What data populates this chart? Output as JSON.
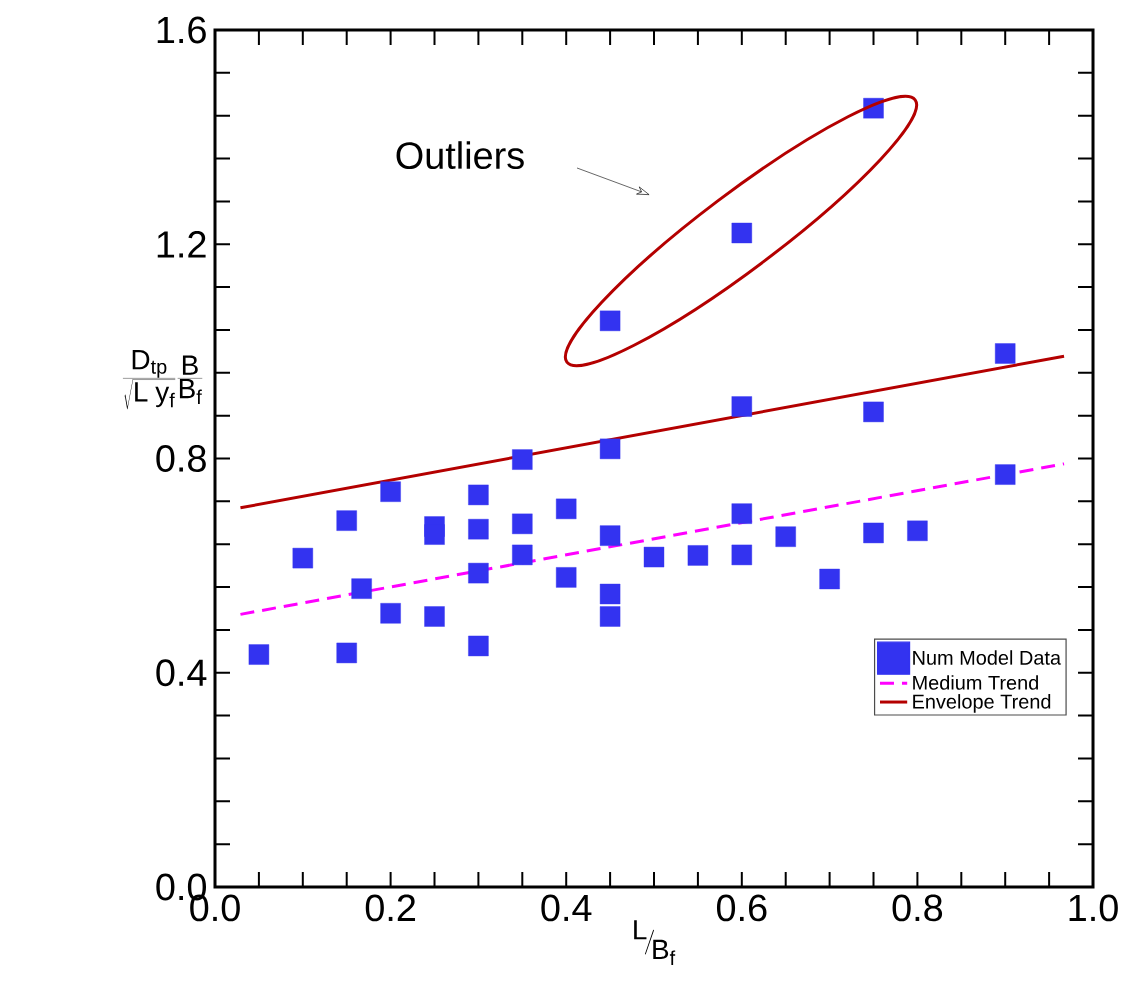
{
  "chart_data": {
    "type": "scatter",
    "xlabel": "{}^{\\mathrm{L}}\\!\\big/_{\\!\\mathrm{B_f}}",
    "ylabel": "\\frac{\\mathrm{D_{tp}}}{\\sqrt{\\mathrm{L\\;y_f}}}\\frac{\\mathrm{B}}{\\mathrm{B_f}}",
    "xlim": [
      0,
      1
    ],
    "ylim": [
      0,
      1.6
    ],
    "xticks": [
      {
        "value": 0,
        "label": "0.0"
      },
      {
        "value": 0.05,
        "label": null
      },
      {
        "value": 0.1,
        "label": null
      },
      {
        "value": 0.15,
        "label": null
      },
      {
        "value": 0.2,
        "label": "0.2"
      },
      {
        "value": 0.25,
        "label": null
      },
      {
        "value": 0.3,
        "label": null
      },
      {
        "value": 0.35,
        "label": null
      },
      {
        "value": 0.4,
        "label": "0.4"
      },
      {
        "value": 0.45,
        "label": null
      },
      {
        "value": 0.5,
        "label": null
      },
      {
        "value": 0.55,
        "label": null
      },
      {
        "value": 0.6,
        "label": "0.6"
      },
      {
        "value": 0.65,
        "label": null
      },
      {
        "value": 0.7,
        "label": null
      },
      {
        "value": 0.75,
        "label": null
      },
      {
        "value": 0.8,
        "label": "0.8"
      },
      {
        "value": 0.85,
        "label": null
      },
      {
        "value": 0.9,
        "label": null
      },
      {
        "value": 0.95,
        "label": null
      },
      {
        "value": 1,
        "label": "1.0"
      }
    ],
    "yticks": [
      {
        "value": 0,
        "label": "0.0"
      },
      {
        "value": 0.08,
        "label": null
      },
      {
        "value": 0.16,
        "label": null
      },
      {
        "value": 0.24,
        "label": null
      },
      {
        "value": 0.32,
        "label": null
      },
      {
        "value": 0.4,
        "label": "0.4"
      },
      {
        "value": 0.48,
        "label": null
      },
      {
        "value": 0.56,
        "label": null
      },
      {
        "value": 0.64,
        "label": null
      },
      {
        "value": 0.72,
        "label": null
      },
      {
        "value": 0.8,
        "label": "0.8"
      },
      {
        "value": 0.88,
        "label": null
      },
      {
        "value": 0.96,
        "label": null
      },
      {
        "value": 1.04,
        "label": null
      },
      {
        "value": 1.12,
        "label": null
      },
      {
        "value": 1.2,
        "label": "1.2"
      },
      {
        "value": 1.28,
        "label": null
      },
      {
        "value": 1.36,
        "label": null
      },
      {
        "value": 1.44,
        "label": null
      },
      {
        "value": 1.52,
        "label": null
      },
      {
        "value": 1.6,
        "label": "1.6"
      }
    ],
    "grid": false,
    "legend": "bottom right",
    "annotations": [
      "Outliers"
    ],
    "series": [
      {
        "name": "Num Model Data",
        "marker": "square",
        "color": "#3333f0",
        "x": [
          0.05,
          0.1,
          0.15,
          0.15,
          0.167,
          0.2,
          0.2,
          0.25,
          0.25,
          0.25,
          0.3,
          0.3,
          0.3,
          0.3,
          0.35,
          0.35,
          0.35,
          0.4,
          0.4,
          0.45,
          0.45,
          0.45,
          0.45,
          0.5,
          0.55,
          0.6,
          0.6,
          0.6,
          0.65,
          0.7,
          0.75,
          0.75,
          0.8,
          0.9,
          0.9,
          0.45,
          0.6,
          0.75
        ],
        "values": [
          0.434,
          0.614,
          0.684,
          0.437,
          0.557,
          0.738,
          0.511,
          0.673,
          0.658,
          0.505,
          0.732,
          0.668,
          0.586,
          0.45,
          0.798,
          0.678,
          0.62,
          0.706,
          0.578,
          0.818,
          0.656,
          0.547,
          0.505,
          0.616,
          0.619,
          0.897,
          0.697,
          0.62,
          0.654,
          0.575,
          0.887,
          0.661,
          0.665,
          0.996,
          0.77,
          1.057,
          1.221,
          1.454
        ]
      },
      {
        "name": "Medium Trend",
        "type": "line",
        "color": "#ff00ff",
        "line_style": "dashed",
        "x": [
          0.029,
          0.967
        ],
        "values": [
          0.509,
          0.79
        ]
      },
      {
        "name": "Envelope Trend",
        "type": "line",
        "color": "#b40000",
        "line_style": "solid",
        "x": [
          0.029,
          0.967
        ],
        "values": [
          0.708,
          0.991
        ]
      }
    ]
  }
}
